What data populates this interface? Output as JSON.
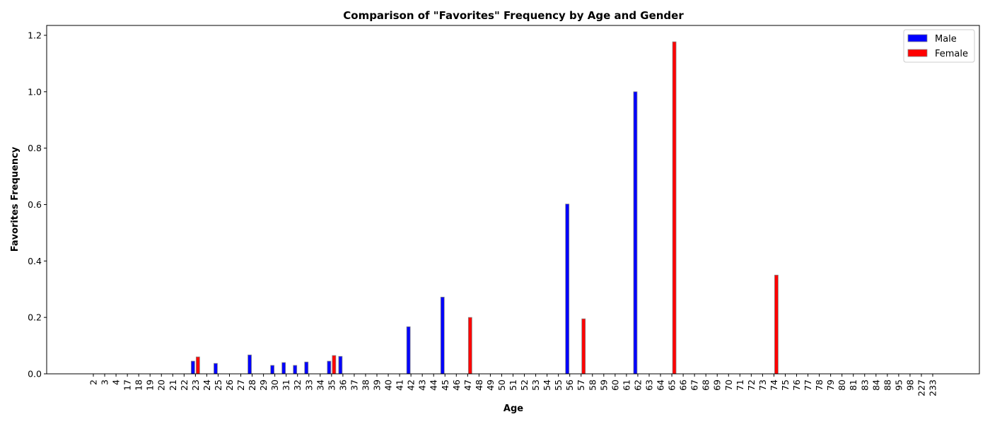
{
  "chart_data": {
    "type": "bar",
    "title": "Comparison of \"Favorites\" Frequency by Age and Gender",
    "xlabel": "Age",
    "ylabel": "Favorites Frequency",
    "ylim": [
      0,
      1.235
    ],
    "yticks": [
      0.0,
      0.2,
      0.4,
      0.6,
      0.8,
      1.0,
      1.2
    ],
    "ytick_labels": [
      "0.0",
      "0.2",
      "0.4",
      "0.6",
      "0.8",
      "1.0",
      "1.2"
    ],
    "grid": false,
    "legend_position": "top-right",
    "categories": [
      "2",
      "3",
      "4",
      "17",
      "18",
      "19",
      "20",
      "21",
      "22",
      "23",
      "24",
      "25",
      "26",
      "27",
      "28",
      "29",
      "30",
      "31",
      "32",
      "33",
      "34",
      "35",
      "36",
      "37",
      "38",
      "39",
      "40",
      "41",
      "42",
      "43",
      "44",
      "45",
      "46",
      "47",
      "48",
      "49",
      "50",
      "51",
      "52",
      "53",
      "54",
      "55",
      "56",
      "57",
      "58",
      "59",
      "60",
      "61",
      "62",
      "63",
      "64",
      "65",
      "66",
      "67",
      "68",
      "69",
      "70",
      "71",
      "72",
      "73",
      "74",
      "75",
      "76",
      "77",
      "78",
      "79",
      "80",
      "81",
      "83",
      "84",
      "88",
      "95",
      "98",
      "227",
      "233"
    ],
    "series": [
      {
        "name": "Male",
        "color": "#0000ff",
        "values": [
          0,
          0,
          0,
          0,
          0,
          0,
          0,
          0,
          0,
          0.045,
          0,
          0.037,
          0,
          0,
          0.067,
          0,
          0.03,
          0.04,
          0.03,
          0.042,
          0,
          0.045,
          0.062,
          0,
          0,
          0,
          0,
          0,
          0.167,
          0,
          0,
          0.272,
          0,
          0,
          0,
          0,
          0,
          0,
          0,
          0,
          0,
          0,
          0.602,
          0,
          0,
          0,
          0,
          0,
          1.0,
          0,
          0,
          0,
          0,
          0,
          0,
          0,
          0,
          0,
          0,
          0,
          0,
          0,
          0,
          0,
          0,
          0,
          0,
          0,
          0,
          0,
          0,
          0,
          0,
          0,
          0
        ]
      },
      {
        "name": "Female",
        "color": "#ff0000",
        "values": [
          0,
          0,
          0,
          0,
          0,
          0,
          0,
          0,
          0,
          0.06,
          0,
          0,
          0,
          0,
          0,
          0,
          0,
          0,
          0,
          0,
          0,
          0.065,
          0,
          0,
          0,
          0,
          0,
          0,
          0,
          0,
          0,
          0,
          0,
          0.2,
          0,
          0,
          0,
          0,
          0,
          0,
          0,
          0,
          0,
          0.195,
          0,
          0,
          0,
          0,
          0,
          0,
          0,
          1.177,
          0,
          0,
          0,
          0,
          0,
          0,
          0,
          0,
          0.35,
          0,
          0,
          0,
          0,
          0,
          0,
          0,
          0,
          0,
          0,
          0,
          0,
          0,
          0
        ]
      }
    ]
  }
}
